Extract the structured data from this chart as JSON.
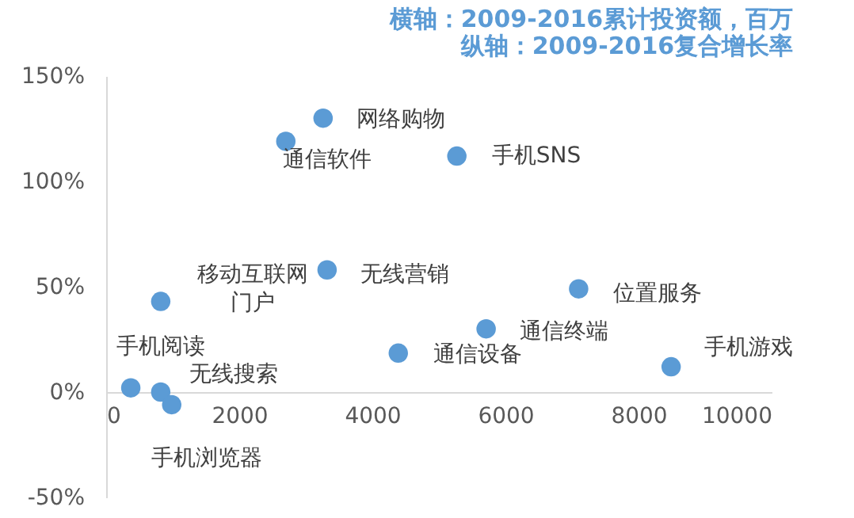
{
  "chart_data": {
    "type": "scatter",
    "title": "横轴：2009-2016累计投资额，百万",
    "subtitle": "纵轴：2009-2016复合增长率",
    "x": [
      3260,
      2700,
      5270,
      820,
      3320,
      7100,
      5710,
      4390,
      8490,
      370,
      820,
      985
    ],
    "series": [
      {
        "color": "#5b9bd5",
        "values": [
          130,
          119,
          112,
          43,
          58,
          49,
          30,
          18.5,
          12,
          2,
          0,
          -6
        ]
      }
    ],
    "annotations": [
      {
        "text": "网络购物",
        "x": 3260,
        "y": 130
      },
      {
        "text": "通信软件",
        "x": 2700,
        "y": 119
      },
      {
        "text": "手机SNS",
        "x": 5270,
        "y": 112
      },
      {
        "text": "移动互联网门户",
        "x": 820,
        "y": 43
      },
      {
        "text": "无线营销",
        "x": 3320,
        "y": 58
      },
      {
        "text": "位置服务",
        "x": 7100,
        "y": 49
      },
      {
        "text": "通信终端",
        "x": 5710,
        "y": 30
      },
      {
        "text": "通信设备",
        "x": 4390,
        "y": 18.5
      },
      {
        "text": "手机游戏",
        "x": 8490,
        "y": 12
      },
      {
        "text": "手机阅读",
        "x": 370,
        "y": 2
      },
      {
        "text": "无线搜索",
        "x": 820,
        "y": 0
      },
      {
        "text": "手机浏览器",
        "x": 985,
        "y": -6
      }
    ],
    "xlim": [
      0,
      10000
    ],
    "xticks": [
      0,
      2000,
      4000,
      6000,
      8000,
      10000
    ],
    "ylim": [
      -50,
      150
    ],
    "yticks": [
      {
        "value": -50,
        "label": "-50%"
      },
      {
        "value": 0,
        "label": "0%"
      },
      {
        "value": 50,
        "label": "50%"
      },
      {
        "value": 100,
        "label": "100%"
      },
      {
        "value": 150,
        "label": "150%"
      }
    ],
    "grid": false,
    "legend": false,
    "marker": "circle"
  }
}
